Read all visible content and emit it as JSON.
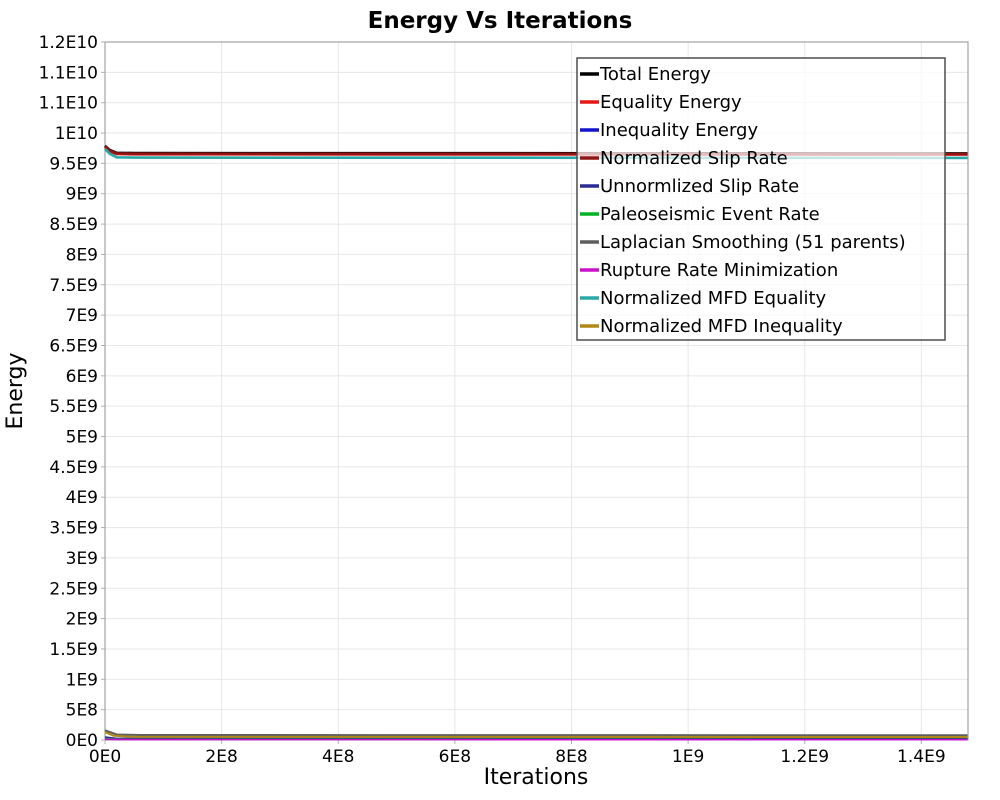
{
  "title": "Energy Vs Iterations",
  "axes": {
    "x_label": "Iterations",
    "y_label": "Energy"
  },
  "colors": {
    "grid": "#e7e7e7",
    "plot_border": "#919191",
    "tick_stub": "#b0b0b0",
    "legend_border": "#4d4d4d",
    "legend_fill": "rgba(255,255,255,0.72)",
    "text": "#000000"
  },
  "chart_data": {
    "type": "line",
    "title": "Energy Vs Iterations",
    "xlabel": "Iterations",
    "ylabel": "Energy",
    "grid": true,
    "legend_position": "top-right-inside",
    "x_range": [
      0,
      1480000000.0
    ],
    "y_range": [
      0,
      11500000000.0
    ],
    "x_ticks": {
      "labels": [
        "0E0",
        "2E8",
        "4E8",
        "6E8",
        "8E8",
        "1E9",
        "1.2E9",
        "1.4E9"
      ],
      "values": [
        0,
        200000000.0,
        400000000.0,
        600000000.0,
        800000000.0,
        1000000000.0,
        1200000000.0,
        1400000000.0
      ]
    },
    "y_ticks": {
      "labels": [
        "1.2E10",
        "1.1E10",
        "1.1E10",
        "1E10",
        "9.5E9",
        "9E9",
        "8.5E9",
        "8E9",
        "7.5E9",
        "7E9",
        "6.5E9",
        "6E9",
        "5.5E9",
        "5E9",
        "4.5E9",
        "4E9",
        "3.5E9",
        "3E9",
        "2.5E9",
        "2E9",
        "1.5E9",
        "1E9",
        "5E8",
        "0E0"
      ],
      "values": [
        11500000000.0,
        11000000000.0,
        10500000000.0,
        10000000000.0,
        9500000000.0,
        9000000000.0,
        8500000000.0,
        8000000000.0,
        7500000000.0,
        7000000000.0,
        6500000000.0,
        6000000000.0,
        5500000000.0,
        5000000000.0,
        4500000000.0,
        4000000000.0,
        3500000000.0,
        3000000000.0,
        2500000000.0,
        2000000000.0,
        1500000000.0,
        1000000000.0,
        500000000.0,
        0
      ]
    },
    "series": [
      {
        "name": "Total Energy",
        "color": "#000000",
        "width": 2.6,
        "points": [
          [
            0,
            9790000000.0
          ],
          [
            8000000.0,
            9720000000.0
          ],
          [
            20000000.0,
            9675000000.0
          ],
          [
            50000000.0,
            9670000000.0
          ],
          [
            1479000000.0,
            9665000000.0
          ]
        ]
      },
      {
        "name": "Equality Energy",
        "color": "#e81717",
        "width": 2.6,
        "points": [
          [
            0,
            9770000000.0
          ],
          [
            8000000.0,
            9700000000.0
          ],
          [
            20000000.0,
            9655000000.0
          ],
          [
            50000000.0,
            9650000000.0
          ],
          [
            1479000000.0,
            9645000000.0
          ]
        ]
      },
      {
        "name": "Inequality Energy",
        "color": "#1414cc",
        "width": 1.6,
        "points": [
          [
            0,
            35000000.0
          ],
          [
            20000000.0,
            18000000.0
          ],
          [
            1479000000.0,
            15000000.0
          ]
        ]
      },
      {
        "name": "Normalized Slip Rate",
        "color": "#8f1414",
        "width": 2.6,
        "points": [
          [
            0,
            9780000000.0
          ],
          [
            8000000.0,
            9710000000.0
          ],
          [
            20000000.0,
            9665000000.0
          ],
          [
            50000000.0,
            9660000000.0
          ],
          [
            1479000000.0,
            9655000000.0
          ]
        ]
      },
      {
        "name": "Unnormlized Slip Rate",
        "color": "#2b2b96",
        "width": 1.6,
        "points": [
          [
            0,
            50000000.0
          ],
          [
            20000000.0,
            26000000.0
          ],
          [
            1479000000.0,
            24000000.0
          ]
        ]
      },
      {
        "name": "Paleoseismic Event Rate",
        "color": "#00b322",
        "width": 1.6,
        "points": [
          [
            0,
            25000000.0
          ],
          [
            20000000.0,
            12000000.0
          ],
          [
            1479000000.0,
            10000000.0
          ]
        ]
      },
      {
        "name": "Laplacian Smoothing (51 parents)",
        "color": "#5e5e5e",
        "width": 2.0,
        "points": [
          [
            0,
            160000000.0
          ],
          [
            20000000.0,
            90000000.0
          ],
          [
            60000000.0,
            82000000.0
          ],
          [
            1479000000.0,
            78000000.0
          ]
        ]
      },
      {
        "name": "Rupture Rate Minimization",
        "color": "#cc11cc",
        "width": 1.6,
        "points": [
          [
            0,
            12000000.0
          ],
          [
            20000000.0,
            6000000.0
          ],
          [
            1479000000.0,
            5000000.0
          ]
        ]
      },
      {
        "name": "Normalized MFD Equality",
        "color": "#2aa8a8",
        "width": 2.6,
        "points": [
          [
            0,
            9740000000.0
          ],
          [
            8000000.0,
            9660000000.0
          ],
          [
            20000000.0,
            9600000000.0
          ],
          [
            50000000.0,
            9595000000.0
          ],
          [
            1479000000.0,
            9590000000.0
          ]
        ]
      },
      {
        "name": "Normalized MFD Inequality",
        "color": "#b08818",
        "width": 2.0,
        "points": [
          [
            0,
            130000000.0
          ],
          [
            15000000.0,
            70000000.0
          ],
          [
            50000000.0,
            52000000.0
          ],
          [
            1479000000.0,
            50000000.0
          ]
        ]
      }
    ]
  },
  "legend": {
    "items": [
      {
        "label": "Total Energy",
        "color": "#000000"
      },
      {
        "label": "Equality Energy",
        "color": "#e81717"
      },
      {
        "label": "Inequality Energy",
        "color": "#1414cc"
      },
      {
        "label": "Normalized Slip Rate",
        "color": "#8f1414"
      },
      {
        "label": "Unnormlized Slip Rate",
        "color": "#2b2b96"
      },
      {
        "label": "Paleoseismic Event Rate",
        "color": "#00b322"
      },
      {
        "label": "Laplacian Smoothing (51 parents)",
        "color": "#5e5e5e"
      },
      {
        "label": "Rupture Rate Minimization",
        "color": "#cc11cc"
      },
      {
        "label": "Normalized MFD Equality",
        "color": "#2aa8a8"
      },
      {
        "label": "Normalized MFD Inequality",
        "color": "#b08818"
      }
    ]
  }
}
